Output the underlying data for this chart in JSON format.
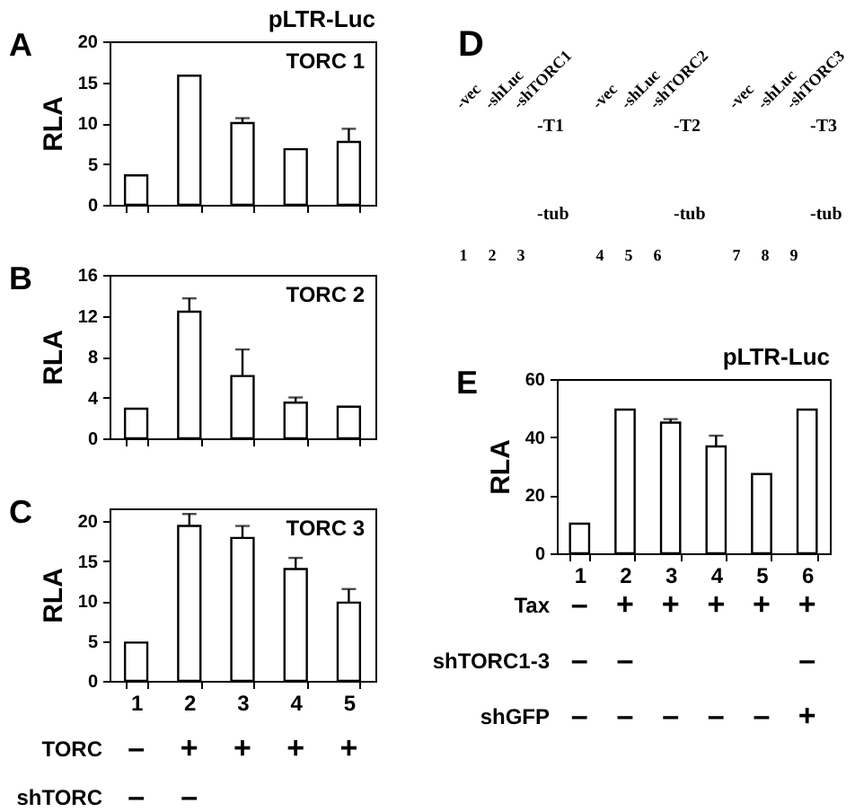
{
  "chart_data": [
    {
      "type": "bar",
      "title": "A",
      "subtitle": "TORC 1",
      "annotations": [
        "pLTR-Luc"
      ],
      "ylabel": "RLA",
      "categories": [
        null,
        null,
        null,
        null,
        null
      ],
      "values": [
        3.6,
        15.8,
        10.0,
        6.8,
        7.7
      ],
      "errors": [
        null,
        null,
        [
          10.0,
          10.6
        ],
        null,
        [
          7.7,
          9.3
        ]
      ],
      "color": "#ffffff",
      "ylim": [
        0,
        20
      ],
      "yticks": [
        0,
        5,
        10,
        15,
        20
      ],
      "tick_labels": "y"
    },
    {
      "type": "bar",
      "title": "B",
      "subtitle": "TORC 2",
      "ylabel": "RLA",
      "categories": [
        null,
        null,
        null,
        null,
        null
      ],
      "values": [
        2.9,
        12.4,
        6.1,
        3.5,
        3.1
      ],
      "errors": [
        null,
        [
          12.4,
          13.7
        ],
        [
          6.1,
          8.7
        ],
        [
          3.5,
          4.0
        ],
        null
      ],
      "color": "#ffffff",
      "ylim": [
        0,
        16
      ],
      "yticks": [
        0,
        4,
        8,
        12,
        16
      ],
      "tick_labels": "y"
    },
    {
      "type": "bar",
      "title": "C",
      "subtitle": "TORC 3",
      "ylabel": "RLA",
      "categories": [
        "1",
        "2",
        "3",
        "4",
        "5"
      ],
      "values": [
        4.8,
        19.4,
        17.9,
        14.0,
        9.8
      ],
      "errors": [
        null,
        [
          19.4,
          20.9
        ],
        [
          17.9,
          19.4
        ],
        [
          14.0,
          15.4
        ],
        [
          9.8,
          11.5
        ]
      ],
      "color": "#ffffff",
      "ylim": [
        0,
        21.6
      ],
      "yticks": [
        0,
        5,
        10,
        15,
        20
      ],
      "annotations": [
        "TORC",
        "–",
        "+",
        "+",
        "+",
        "+",
        "shTORC",
        "–",
        "–"
      ]
    },
    {
      "type": "other",
      "title": "D",
      "categories": [
        "1",
        "2",
        "3",
        "4",
        "5",
        "6",
        "7",
        "8",
        "9"
      ],
      "annotations": [
        {
          "text": "-vec",
          "x": "1"
        },
        {
          "text": "-shLuc",
          "x": "2"
        },
        {
          "text": "-shTORC1",
          "x": "3"
        },
        {
          "text": "-vec",
          "x": "4"
        },
        {
          "text": "-shLuc",
          "x": "5"
        },
        {
          "text": "-shTORC2",
          "x": "6"
        },
        {
          "text": "-vec",
          "x": "7"
        },
        {
          "text": "-shLuc",
          "x": "8"
        },
        {
          "text": "-shTORC3",
          "x": "9"
        },
        "-T1",
        "-T2",
        "-T3",
        "-tub",
        "-tub",
        "-tub"
      ]
    },
    {
      "type": "bar",
      "title": "E",
      "ylabel": "RLA",
      "categories": [
        "1",
        "2",
        "3",
        "4",
        "5",
        "6"
      ],
      "values": [
        10.2,
        49.5,
        45.0,
        36.8,
        27.3,
        49.5
      ],
      "errors": [
        null,
        null,
        [
          45.0,
          46.2
        ],
        [
          36.8,
          40.5
        ],
        null,
        null
      ],
      "color": "#ffffff",
      "ylim": [
        0,
        60
      ],
      "yticks": [
        0,
        20,
        40,
        60
      ],
      "annotations": [
        "pLTR-Luc",
        "Tax",
        "–",
        "+",
        "+",
        "+",
        "+",
        "+",
        "shTORC1-3",
        "–",
        "–",
        "–",
        "shGFP",
        "–",
        "–",
        "–",
        "–",
        "–",
        "+"
      ]
    }
  ]
}
